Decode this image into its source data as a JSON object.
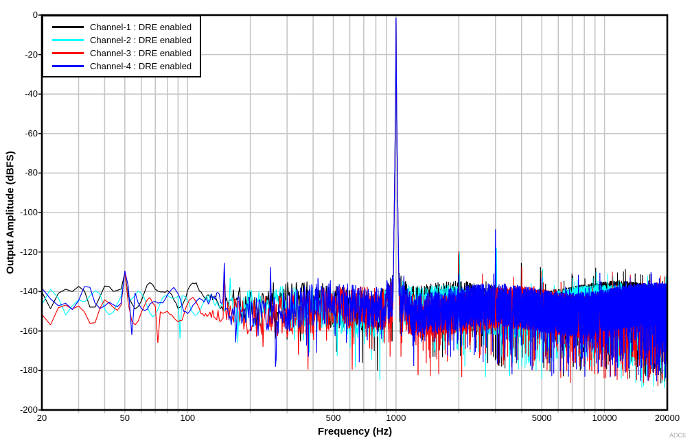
{
  "figure": {
    "watermark": "ADC6",
    "background": "#ffffff"
  },
  "chart_data": {
    "type": "line",
    "title": "",
    "xlabel": "Frequency (Hz)",
    "ylabel": "Output Amplitude (dBFS)",
    "x_scale": "log",
    "xlim": [
      20,
      20000
    ],
    "ylim": [
      -200,
      0
    ],
    "grid": {
      "show": true,
      "color": "#c6c6c6"
    },
    "frame_color": "#000000",
    "x_tick_values": [
      20,
      50,
      100,
      500,
      1000,
      5000,
      10000,
      20000
    ],
    "x_tick_labels": [
      "20",
      "50",
      "100",
      "500",
      "1000",
      "5000",
      "10000",
      "20000"
    ],
    "y_tick_values": [
      0,
      -20,
      -40,
      -60,
      -80,
      -100,
      -120,
      -140,
      -160,
      -180,
      -200
    ],
    "y_tick_labels": [
      "0",
      "-20",
      "-40",
      "-60",
      "-80",
      "-100",
      "-120",
      "-140",
      "-160",
      "-180",
      "-200"
    ],
    "legend_position": "top-left",
    "series": [
      {
        "name": "channel-1",
        "label": "Channel-1 : DRE enabled",
        "color": "#000000",
        "seed": 7,
        "base_db": -141.5,
        "noise_offset_db": 2,
        "peaks": [
          {
            "f": 50,
            "db": -130.5,
            "w": 0.05
          },
          {
            "f": 150,
            "db": -128,
            "w": 0.012
          },
          {
            "f": 905,
            "db": -131,
            "w": 0.009
          },
          {
            "f": 1000,
            "db": -2.4,
            "w": 0.018
          },
          {
            "f": 1090,
            "db": -134,
            "w": 0.008
          },
          {
            "f": 1995,
            "db": -115.8,
            "w": 0.005
          },
          {
            "f": 3990,
            "db": -125.5,
            "w": 0.005
          },
          {
            "f": 4930,
            "db": -127.5,
            "w": 0.004
          },
          {
            "f": 6980,
            "db": -131,
            "w": 0.004
          },
          {
            "f": 9070,
            "db": -128,
            "w": 0.0045
          },
          {
            "f": 12600,
            "db": -128.5,
            "w": 0.004
          },
          {
            "f": 19900,
            "db": -131,
            "w": 0.003
          }
        ],
        "dips": []
      },
      {
        "name": "channel-2",
        "label": "Channel-2 : DRE enabled",
        "color": "#00ffff",
        "seed": 13,
        "base_db": -145,
        "noise_offset_db": 0,
        "peaks": [
          {
            "f": 50,
            "db": -131,
            "w": 0.05
          },
          {
            "f": 160,
            "db": -133,
            "w": 0.01
          },
          {
            "f": 905,
            "db": -130.5,
            "w": 0.009
          },
          {
            "f": 1000,
            "db": -2.2,
            "w": 0.018
          },
          {
            "f": 1090,
            "db": -134,
            "w": 0.008
          },
          {
            "f": 2015,
            "db": -114.5,
            "w": 0.005
          },
          {
            "f": 3030,
            "db": -118,
            "w": 0.005
          },
          {
            "f": 5050,
            "db": -128.5,
            "w": 0.004
          },
          {
            "f": 7010,
            "db": -133,
            "w": 0.004
          },
          {
            "f": 9120,
            "db": -130,
            "w": 0.004
          },
          {
            "f": 10950,
            "db": -133,
            "w": 0.004
          },
          {
            "f": 16100,
            "db": -132,
            "w": 0.0035
          },
          {
            "f": 19700,
            "db": -132.5,
            "w": 0.0035
          }
        ],
        "dips": [
          {
            "f": 92,
            "db": -164,
            "w": 0.012
          },
          {
            "f": 17200,
            "db": -188,
            "w": 0.004
          }
        ]
      },
      {
        "name": "channel-3",
        "label": "Channel-3 : DRE enabled",
        "color": "#ff0000",
        "seed": 23,
        "base_db": -150,
        "noise_offset_db": -0.5,
        "peaks": [
          {
            "f": 50,
            "db": -130,
            "w": 0.05
          },
          {
            "f": 150,
            "db": -131,
            "w": 0.01
          },
          {
            "f": 905,
            "db": -132,
            "w": 0.009
          },
          {
            "f": 1000,
            "db": -1.8,
            "w": 0.018
          },
          {
            "f": 1090,
            "db": -133,
            "w": 0.008
          },
          {
            "f": 2000,
            "db": -119.5,
            "w": 0.005
          },
          {
            "f": 2600,
            "db": -131,
            "w": 0.004
          },
          {
            "f": 4010,
            "db": -127.5,
            "w": 0.0045
          },
          {
            "f": 5000,
            "db": -129.5,
            "w": 0.004
          },
          {
            "f": 10900,
            "db": -130,
            "w": 0.004
          },
          {
            "f": 13300,
            "db": -131.5,
            "w": 0.004
          },
          {
            "f": 16800,
            "db": -133,
            "w": 0.004
          }
        ],
        "dips": [
          {
            "f": 72,
            "db": -166,
            "w": 0.014
          },
          {
            "f": 230,
            "db": -168,
            "w": 0.008
          }
        ]
      },
      {
        "name": "channel-4",
        "label": "Channel-4 : DRE enabled",
        "color": "#0000ff",
        "seed": 31,
        "base_db": -144.5,
        "noise_offset_db": 1,
        "peaks": [
          {
            "f": 50,
            "db": -129.5,
            "w": 0.05
          },
          {
            "f": 150,
            "db": -125.5,
            "w": 0.012
          },
          {
            "f": 250,
            "db": -127.5,
            "w": 0.01
          },
          {
            "f": 905,
            "db": -130,
            "w": 0.009
          },
          {
            "f": 1000,
            "db": -1.3,
            "w": 0.018
          },
          {
            "f": 1090,
            "db": -132,
            "w": 0.008
          },
          {
            "f": 2000,
            "db": -131,
            "w": 0.004
          },
          {
            "f": 3000,
            "db": -108.5,
            "w": 0.006
          },
          {
            "f": 7500,
            "db": -131.5,
            "w": 0.004
          },
          {
            "f": 9500,
            "db": -130.5,
            "w": 0.004
          }
        ],
        "dips": [
          {
            "f": 54,
            "db": -162,
            "w": 0.012
          },
          {
            "f": 3600,
            "db": -182,
            "w": 0.004
          }
        ]
      }
    ],
    "synthesis": {
      "bin_hz": 2,
      "noise_center_db": -150,
      "noise_spread_db": 11,
      "dip_probability": 0.06,
      "dip_extra_db": 24,
      "spike_up_probability": 0.015,
      "spike_up_db": 7,
      "smooth_region_max_hz": 110,
      "noise_blend_max_hz": 210,
      "smooth_amp1_db": 4.5,
      "smooth_cycles1_per_decade": 5,
      "smooth_amp2_db": 3,
      "smooth_cycles2_per_decade": 9.5,
      "skirt_boost_db": 9,
      "skirt_sigma": 0.045,
      "peak_floor_ref_db": -165
    }
  }
}
